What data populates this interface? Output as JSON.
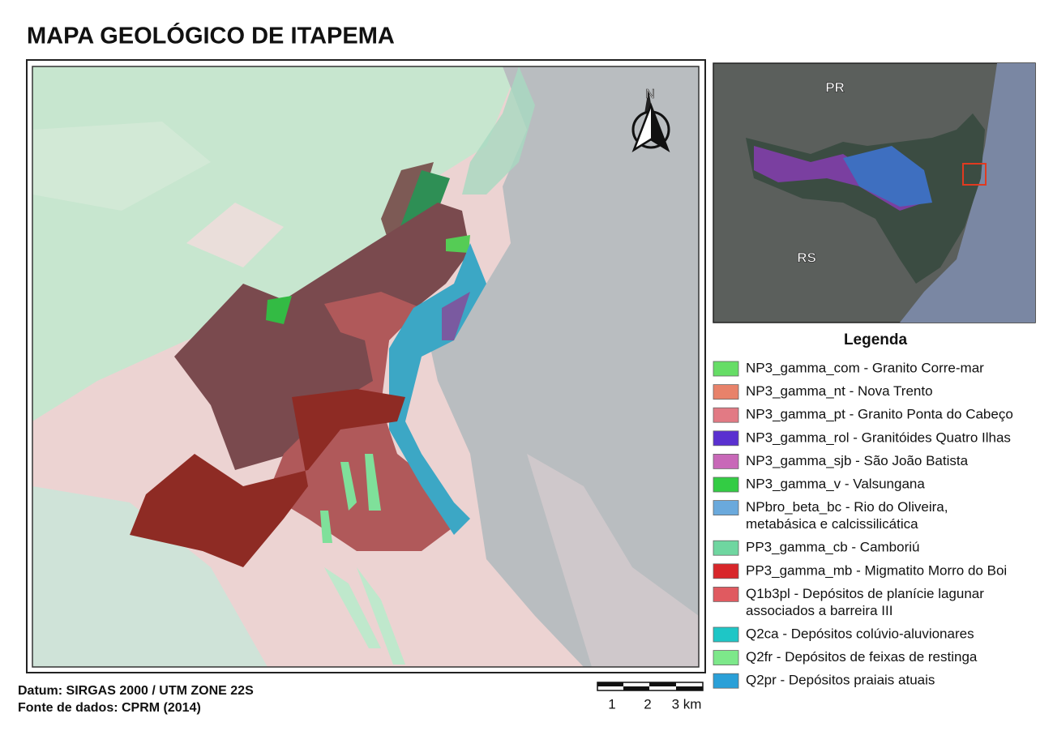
{
  "title": "MAPA GEOLÓGICO DE ITAPEMA",
  "north_label": "N",
  "inset": {
    "labels": [
      "PR",
      "RS"
    ]
  },
  "legend": {
    "title": "Legenda",
    "items": [
      {
        "lines": [
          "NP3_gamma_com - Granito Corre-mar"
        ],
        "color": "#66dd66"
      },
      {
        "lines": [
          "NP3_gamma_nt - Nova Trento"
        ],
        "color": "#e8826a"
      },
      {
        "lines": [
          "NP3_gamma_pt - Granito Ponta do Cabeço"
        ],
        "color": "#e27a84"
      },
      {
        "lines": [
          "NP3_gamma_rol - Granitóides Quatro Ilhas"
        ],
        "color": "#5a30d0"
      },
      {
        "lines": [
          "NP3_gamma_sjb - São João Batista"
        ],
        "color": "#c868b8"
      },
      {
        "lines": [
          "NP3_gamma_v - Valsungana"
        ],
        "color": "#33cc44"
      },
      {
        "lines": [
          "NPbro_beta_bc - Rio do Oliveira,",
          "metabásica e calcissilicática"
        ],
        "color": "#6aa9dc"
      },
      {
        "lines": [
          "PP3_gamma_cb - Camboriú"
        ],
        "color": "#6fd6a0"
      },
      {
        "lines": [
          "PP3_gamma_mb - Migmatito Morro do Boi"
        ],
        "color": "#d8262a"
      },
      {
        "lines": [
          "Q1b3pl - Depósitos de planície lagunar",
          "associados a barreira III"
        ],
        "color": "#e05a60"
      },
      {
        "lines": [
          "Q2ca - Depósitos colúvio-aluvionares"
        ],
        "color": "#1ec6c6"
      },
      {
        "lines": [
          "Q2fr - Depósitos de feixas de restinga"
        ],
        "color": "#7de88a"
      },
      {
        "lines": [
          "Q2pr - Depósitos praiais atuais"
        ],
        "color": "#2aa0d8"
      }
    ]
  },
  "footer": [
    "Datum: SIRGAS 2000 / UTM ZONE 22S",
    "Fonte de dados: CPRM (2014)"
  ],
  "scale_bar": {
    "labels": [
      "1",
      "2",
      "3 km"
    ]
  }
}
